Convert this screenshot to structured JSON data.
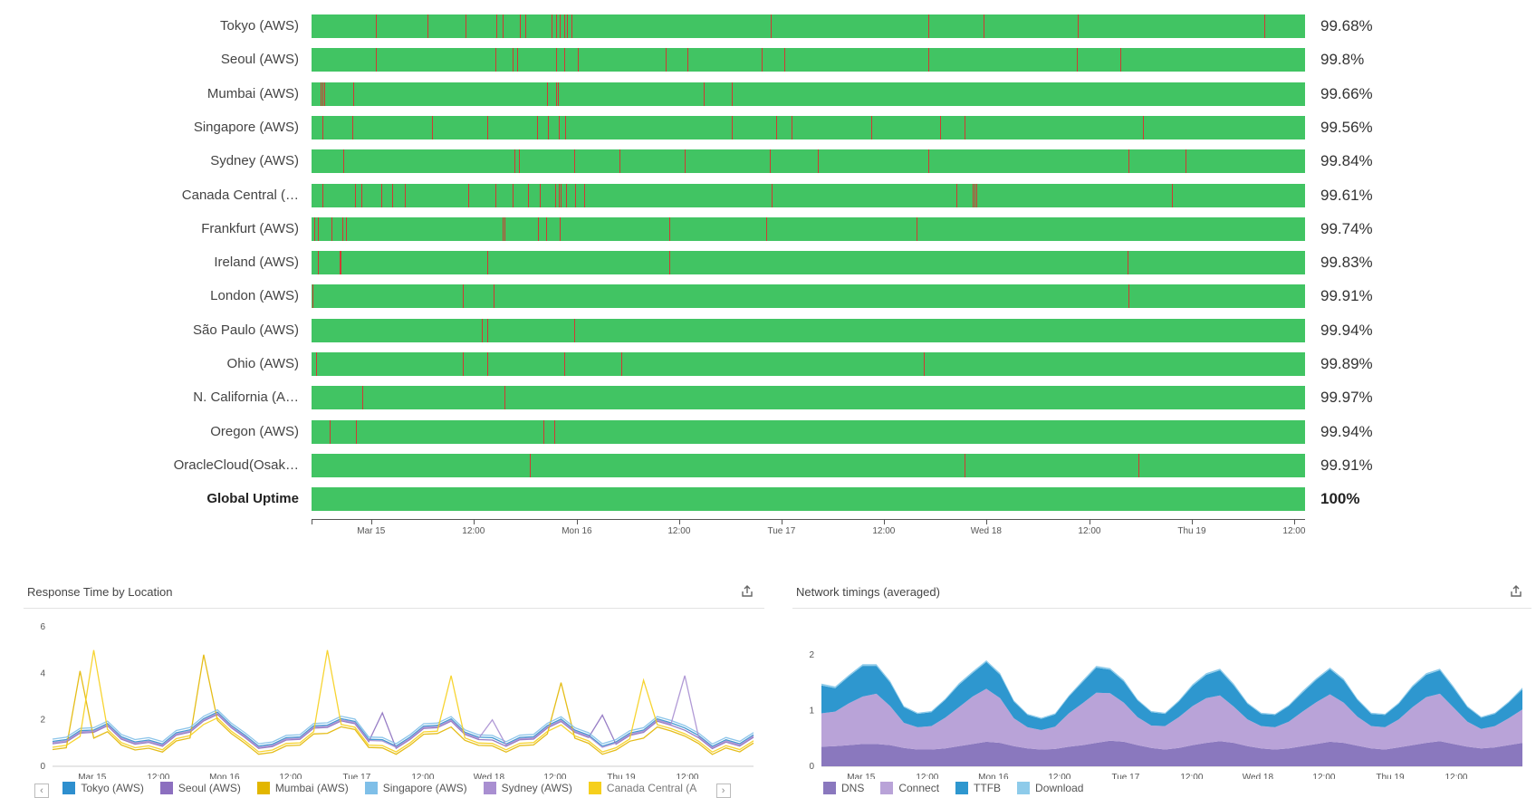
{
  "uptime": {
    "rows": [
      {
        "label": "Tokyo (AWS)",
        "pct": "99.68%",
        "outages": [
          6.5,
          11.7,
          15.5,
          18.6,
          19.2,
          21,
          21.5,
          24.2,
          24.6,
          25,
          25.4,
          25.7,
          26.2,
          46.2,
          62.1,
          67.6,
          77.1,
          95.9
        ]
      },
      {
        "label": "Seoul (AWS)",
        "pct": "99.8%",
        "outages": [
          6.5,
          18.5,
          20.2,
          20.7,
          24.6,
          25.4,
          26.8,
          35.6,
          37.8,
          45.3,
          47.6,
          62.1,
          77,
          81.4
        ]
      },
      {
        "label": "Mumbai (AWS)",
        "pct": "99.66%",
        "outages": [
          0.9,
          1.1,
          1.3,
          4.2,
          23.7,
          24.6,
          24.8,
          39.5,
          42.3
        ]
      },
      {
        "label": "Singapore (AWS)",
        "pct": "99.56%",
        "outages": [
          1.1,
          4.1,
          12.1,
          17.7,
          22.7,
          23.8,
          24.9,
          25.5,
          42.3,
          46.8,
          48.3,
          56.3,
          63.3,
          65.7,
          83.7
        ]
      },
      {
        "label": "Sydney (AWS)",
        "pct": "99.84%",
        "outages": [
          3.2,
          20.4,
          20.9,
          26.4,
          31,
          37.6,
          46.1,
          51,
          62.1,
          82.2,
          88
        ]
      },
      {
        "label": "Canada Central (AWS)",
        "pct": "99.61%",
        "outages": [
          1.1,
          4.4,
          5,
          7,
          8.1,
          9.4,
          15.8,
          18.5,
          20.2,
          21.8,
          23,
          24.5,
          24.9,
          25.1,
          25.6,
          26.5,
          27.4,
          46.3,
          64.9,
          66.5,
          66.7,
          66.9,
          86.6
        ]
      },
      {
        "label": "Frankfurt (AWS)",
        "pct": "99.74%",
        "outages": [
          0.3,
          0.6,
          2,
          3.1,
          3.5,
          19.2,
          19.4,
          22.8,
          23.6,
          25,
          36,
          45.8,
          60.9
        ]
      },
      {
        "label": "Ireland (AWS)",
        "pct": "99.83%",
        "outages": [
          0.6,
          2.8,
          2.9,
          17.7,
          36,
          82.1
        ]
      },
      {
        "label": "London (AWS)",
        "pct": "99.91%",
        "outages": [
          0.1,
          15.2,
          18.3,
          82.2
        ]
      },
      {
        "label": "São Paulo (AWS)",
        "pct": "99.94%",
        "outages": [
          17.1,
          17.7,
          26.4
        ]
      },
      {
        "label": "Ohio (AWS)",
        "pct": "99.89%",
        "outages": [
          0.5,
          15.2,
          17.7,
          25.4,
          31.2,
          61.6
        ]
      },
      {
        "label": "N. California (AWS)",
        "pct": "99.97%",
        "outages": [
          5.1,
          19.4
        ]
      },
      {
        "label": "Oregon (AWS)",
        "pct": "99.94%",
        "outages": [
          1.8,
          4.5,
          23.3,
          24.4
        ]
      },
      {
        "label": "OracleCloud(Osaka)",
        "pct": "99.91%",
        "outages": [
          22,
          65.7,
          83.2
        ]
      },
      {
        "label": "Global Uptime",
        "pct": "100%",
        "outages": [],
        "bold": true
      }
    ],
    "axis": [
      {
        "t": 6,
        "label": "Mar 15"
      },
      {
        "t": 16.3,
        "label": "12:00"
      },
      {
        "t": 26.7,
        "label": "Mon 16"
      },
      {
        "t": 37,
        "label": "12:00"
      },
      {
        "t": 47.3,
        "label": "Tue 17"
      },
      {
        "t": 57.6,
        "label": "12:00"
      },
      {
        "t": 67.9,
        "label": "Wed 18"
      },
      {
        "t": 78.3,
        "label": "12:00"
      },
      {
        "t": 88.6,
        "label": "Thu 19"
      },
      {
        "t": 98.9,
        "label": "12:00"
      }
    ],
    "colors": {
      "up": "#41c463",
      "down": "#cf3a33"
    }
  },
  "response_panel": {
    "title": "Response Time by Location",
    "export_icon": "share-export-icon",
    "legend": [
      {
        "name": "Tokyo (AWS)",
        "color": "#2e8fce"
      },
      {
        "name": "Seoul (AWS)",
        "color": "#8c6fbf"
      },
      {
        "name": "Mumbai (AWS)",
        "color": "#e2b600"
      },
      {
        "name": "Singapore (AWS)",
        "color": "#7fbfe8"
      },
      {
        "name": "Sydney (AWS)",
        "color": "#a98fd1"
      },
      {
        "name": "Canada Central (AWS)",
        "color": "#f6cf1c"
      }
    ],
    "legend_truncated_label": "Canada Central (A",
    "legend_prev": "‹",
    "legend_next": "›"
  },
  "network_panel": {
    "title": "Network timings (averaged)",
    "export_icon": "share-export-icon",
    "legend": [
      {
        "name": "DNS",
        "color": "#8a78be"
      },
      {
        "name": "Connect",
        "color": "#b9a3d8"
      },
      {
        "name": "TTFB",
        "color": "#2e97cf"
      },
      {
        "name": "Download",
        "color": "#8ecbea"
      }
    ]
  },
  "chart_data": [
    {
      "type": "line",
      "title": "Response Time by Location",
      "ylim": [
        0,
        6
      ],
      "yticks": [
        0,
        2,
        4,
        6
      ],
      "x_tick_labels": [
        "Mar 15",
        "12:00",
        "Mon 16",
        "12:00",
        "Tue 17",
        "12:00",
        "Wed 18",
        "12:00",
        "Thu 19",
        "12:00"
      ],
      "baseline": [
        1.1,
        1.0,
        1.2,
        1.5,
        1.6,
        1.3,
        0.9,
        0.8,
        0.9,
        1.2,
        1.6,
        1.9,
        2.0,
        1.7,
        1.1,
        0.9,
        0.8,
        0.9,
        1.2,
        1.5,
        1.8,
        1.9,
        1.6,
        1.1,
        0.9,
        0.9,
        1.1,
        1.4,
        1.7,
        1.8,
        1.5,
        1.1,
        0.9,
        0.9,
        1.0,
        1.3,
        1.6,
        1.7,
        1.5,
        1.1,
        0.9,
        0.9,
        1.1,
        1.5,
        1.8,
        1.9,
        1.5,
        1.0,
        0.8,
        0.9,
        1.0,
        1.2
      ],
      "series": [
        {
          "name": "Tokyo (AWS)",
          "offset": 0.15,
          "peaks": []
        },
        {
          "name": "Seoul (AWS)",
          "offset": 0.05,
          "peaks": [
            [
              24,
              2.3
            ],
            [
              40,
              2.2
            ]
          ]
        },
        {
          "name": "Mumbai (AWS)",
          "offset": -0.2,
          "peaks": [
            [
              2,
              4.1
            ],
            [
              11,
              4.8
            ],
            [
              37,
              3.6
            ]
          ]
        },
        {
          "name": "Singapore (AWS)",
          "offset": 0.25,
          "peaks": []
        },
        {
          "name": "Sydney (AWS)",
          "offset": 0.1,
          "peaks": [
            [
              32,
              2.0
            ],
            [
              46,
              3.9
            ]
          ]
        },
        {
          "name": "Canada Central (AWS)",
          "offset": -0.1,
          "peaks": [
            [
              3,
              5.0
            ],
            [
              20,
              5.0
            ],
            [
              29,
              3.9
            ],
            [
              43,
              3.7
            ],
            [
              52,
              3.9
            ]
          ]
        }
      ]
    },
    {
      "type": "area",
      "title": "Network timings (averaged)",
      "ylim": [
        0,
        2.5
      ],
      "yticks": [
        0,
        1,
        2
      ],
      "x_tick_labels": [
        "Mar 15",
        "12:00",
        "Mon 16",
        "12:00",
        "Tue 17",
        "12:00",
        "Wed 18",
        "12:00",
        "Thu 19",
        "12:00"
      ],
      "x": [
        0,
        1,
        2,
        3,
        4,
        5,
        6,
        7,
        8,
        9,
        10,
        11,
        12,
        13,
        14,
        15,
        16,
        17,
        18,
        19,
        20,
        21,
        22,
        23,
        24,
        25,
        26,
        27,
        28,
        29,
        30,
        31,
        32,
        33,
        34,
        35,
        36,
        37,
        38,
        39,
        40,
        41,
        42,
        43,
        44,
        45,
        46,
        47,
        48,
        49,
        50,
        51
      ],
      "series": [
        {
          "name": "DNS",
          "values": [
            0.35,
            0.36,
            0.38,
            0.4,
            0.4,
            0.38,
            0.33,
            0.3,
            0.3,
            0.32,
            0.36,
            0.4,
            0.44,
            0.42,
            0.36,
            0.32,
            0.3,
            0.31,
            0.35,
            0.38,
            0.42,
            0.46,
            0.44,
            0.38,
            0.33,
            0.3,
            0.33,
            0.38,
            0.42,
            0.45,
            0.42,
            0.36,
            0.32,
            0.3,
            0.32,
            0.36,
            0.4,
            0.44,
            0.42,
            0.37,
            0.32,
            0.3,
            0.34,
            0.38,
            0.42,
            0.45,
            0.4,
            0.35,
            0.32,
            0.34,
            0.38,
            0.42
          ]
        },
        {
          "name": "Connect",
          "values": [
            0.6,
            0.62,
            0.75,
            0.85,
            0.9,
            0.7,
            0.45,
            0.4,
            0.42,
            0.55,
            0.7,
            0.85,
            0.95,
            0.8,
            0.5,
            0.38,
            0.35,
            0.4,
            0.6,
            0.75,
            0.9,
            0.85,
            0.7,
            0.5,
            0.4,
            0.42,
            0.55,
            0.7,
            0.8,
            0.82,
            0.65,
            0.48,
            0.4,
            0.4,
            0.48,
            0.62,
            0.75,
            0.85,
            0.72,
            0.52,
            0.4,
            0.4,
            0.5,
            0.68,
            0.82,
            0.85,
            0.65,
            0.45,
            0.35,
            0.38,
            0.48,
            0.6
          ]
        },
        {
          "name": "TTFB",
          "values": [
            0.5,
            0.42,
            0.48,
            0.55,
            0.5,
            0.42,
            0.28,
            0.24,
            0.25,
            0.32,
            0.4,
            0.42,
            0.48,
            0.42,
            0.3,
            0.22,
            0.2,
            0.22,
            0.3,
            0.38,
            0.45,
            0.42,
            0.38,
            0.3,
            0.24,
            0.22,
            0.28,
            0.36,
            0.42,
            0.45,
            0.38,
            0.28,
            0.22,
            0.22,
            0.28,
            0.34,
            0.4,
            0.45,
            0.4,
            0.3,
            0.22,
            0.22,
            0.28,
            0.36,
            0.4,
            0.42,
            0.35,
            0.26,
            0.2,
            0.22,
            0.28,
            0.36
          ]
        },
        {
          "name": "Download",
          "values": [
            0.03,
            0.03,
            0.03,
            0.03,
            0.03,
            0.03,
            0.02,
            0.02,
            0.02,
            0.02,
            0.03,
            0.03,
            0.03,
            0.03,
            0.02,
            0.02,
            0.02,
            0.02,
            0.02,
            0.03,
            0.03,
            0.03,
            0.03,
            0.02,
            0.02,
            0.02,
            0.02,
            0.03,
            0.03,
            0.03,
            0.03,
            0.02,
            0.02,
            0.02,
            0.02,
            0.03,
            0.03,
            0.03,
            0.03,
            0.02,
            0.02,
            0.02,
            0.02,
            0.03,
            0.03,
            0.03,
            0.03,
            0.02,
            0.02,
            0.02,
            0.02,
            0.03
          ]
        }
      ]
    }
  ]
}
